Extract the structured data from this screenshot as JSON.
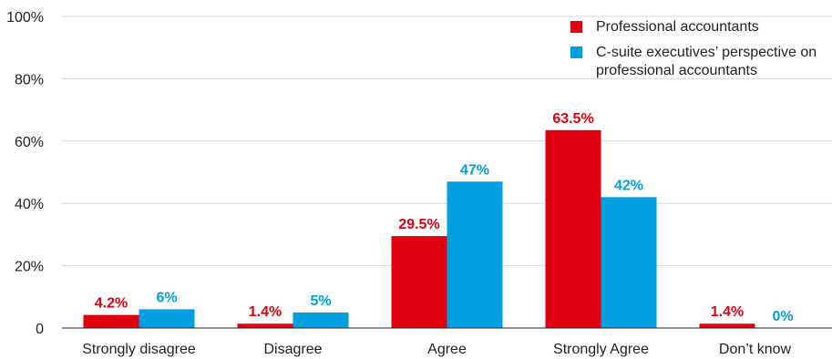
{
  "chart_data": {
    "type": "bar",
    "categories": [
      "Strongly disagree",
      "Disagree",
      "Agree",
      "Strongly Agree",
      "Don’t know"
    ],
    "series": [
      {
        "name": "Professional accountants",
        "color": "#e1000f",
        "values": [
          4.2,
          1.4,
          29.5,
          63.5,
          1.4
        ],
        "labels": [
          "4.2%",
          "1.4%",
          "29.5%",
          "63.5%",
          "1.4%"
        ]
      },
      {
        "name": "C-suite executives’ perspective on professional accountants",
        "color": "#009fe0",
        "values": [
          6,
          5,
          47,
          42,
          0
        ],
        "labels": [
          "6%",
          "5%",
          "47%",
          "42%",
          "0%"
        ]
      }
    ],
    "ylim": [
      0,
      100
    ],
    "yticks": [
      0,
      20,
      40,
      60,
      80,
      100
    ],
    "ytick_labels": [
      "0",
      "20%",
      "40%",
      "60%",
      "80%",
      "100%"
    ],
    "grid": "horizontal",
    "legend_position": "top-right"
  }
}
